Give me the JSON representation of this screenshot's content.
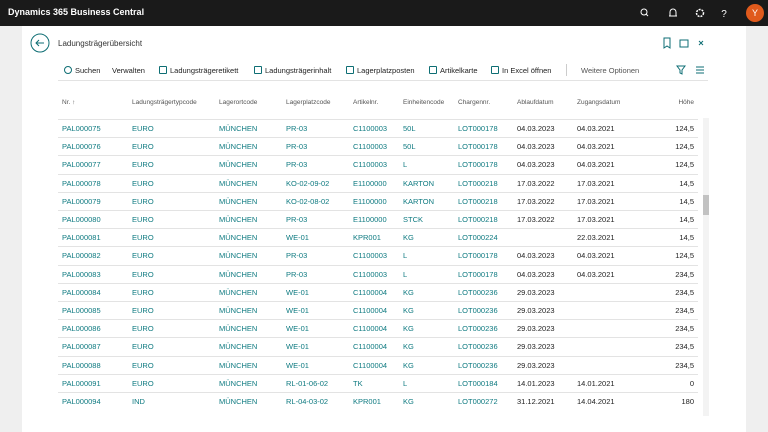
{
  "app_bar": {
    "title": "Dynamics 365 Business Central",
    "avatar": "Y"
  },
  "page": {
    "title": "Ladungsträgerübersicht"
  },
  "actions": [
    "Suchen",
    "Verwalten",
    "Ladungsträgeretikett",
    "Ladungsträgerinhalt",
    "Lagerplatzposten",
    "Artikelkarte",
    "In Excel öffnen",
    "Weitere Optionen"
  ],
  "table": {
    "columns": [
      "Nr. ↑",
      "Ladungsträgertypcode",
      "Lagerortcode",
      "Lagerplatzcode",
      "Artikelnr.",
      "Einheitencode",
      "Chargennr.",
      "Ablaufdatum",
      "Zugangsdatum",
      "Höhe"
    ],
    "rows": [
      [
        "PAL000075",
        "EURO",
        "MÜNCHEN",
        "PR-03",
        "C1100003",
        "50L",
        "LOT000178",
        "04.03.2023",
        "04.03.2021",
        "124,5"
      ],
      [
        "PAL000076",
        "EURO",
        "MÜNCHEN",
        "PR-03",
        "C1100003",
        "50L",
        "LOT000178",
        "04.03.2023",
        "04.03.2021",
        "124,5"
      ],
      [
        "PAL000077",
        "EURO",
        "MÜNCHEN",
        "PR-03",
        "C1100003",
        "L",
        "LOT000178",
        "04.03.2023",
        "04.03.2021",
        "124,5"
      ],
      [
        "PAL000078",
        "EURO",
        "MÜNCHEN",
        "KO-02-09-02",
        "E1100000",
        "KARTON",
        "LOT000218",
        "17.03.2022",
        "17.03.2021",
        "14,5"
      ],
      [
        "PAL000079",
        "EURO",
        "MÜNCHEN",
        "KO-02-08-02",
        "E1100000",
        "KARTON",
        "LOT000218",
        "17.03.2022",
        "17.03.2021",
        "14,5"
      ],
      [
        "PAL000080",
        "EURO",
        "MÜNCHEN",
        "PR-03",
        "E1100000",
        "STCK",
        "LOT000218",
        "17.03.2022",
        "17.03.2021",
        "14,5"
      ],
      [
        "PAL000081",
        "EURO",
        "MÜNCHEN",
        "WE-01",
        "KPR001",
        "KG",
        "LOT000224",
        null,
        "22.03.2021",
        "14,5"
      ],
      [
        "PAL000082",
        "EURO",
        "MÜNCHEN",
        "PR-03",
        "C1100003",
        "L",
        "LOT000178",
        "04.03.2023",
        "04.03.2021",
        "124,5"
      ],
      [
        "PAL000083",
        "EURO",
        "MÜNCHEN",
        "PR-03",
        "C1100003",
        "L",
        "LOT000178",
        "04.03.2023",
        "04.03.2021",
        "234,5"
      ],
      [
        "PAL000084",
        "EURO",
        "MÜNCHEN",
        "WE-01",
        "C1100004",
        "KG",
        "LOT000236",
        "29.03.2023",
        null,
        "234,5"
      ],
      [
        "PAL000085",
        "EURO",
        "MÜNCHEN",
        "WE-01",
        "C1100004",
        "KG",
        "LOT000236",
        "29.03.2023",
        null,
        "234,5"
      ],
      [
        "PAL000086",
        "EURO",
        "MÜNCHEN",
        "WE-01",
        "C1100004",
        "KG",
        "LOT000236",
        "29.03.2023",
        null,
        "234,5"
      ],
      [
        "PAL000087",
        "EURO",
        "MÜNCHEN",
        "WE-01",
        "C1100004",
        "KG",
        "LOT000236",
        "29.03.2023",
        null,
        "234,5"
      ],
      [
        "PAL000088",
        "EURO",
        "MÜNCHEN",
        "WE-01",
        "C1100004",
        "KG",
        "LOT000236",
        "29.03.2023",
        null,
        "234,5"
      ],
      [
        "PAL000091",
        "EURO",
        "MÜNCHEN",
        "RL-01-06-02",
        "TK",
        "L",
        "LOT000184",
        "14.01.2023",
        "14.01.2021",
        "0"
      ],
      [
        "PAL000094",
        "IND",
        "MÜNCHEN",
        "RL-04-03-02",
        "KPR001",
        "KG",
        "LOT000272",
        "31.12.2021",
        "14.04.2021",
        "180"
      ]
    ]
  }
}
